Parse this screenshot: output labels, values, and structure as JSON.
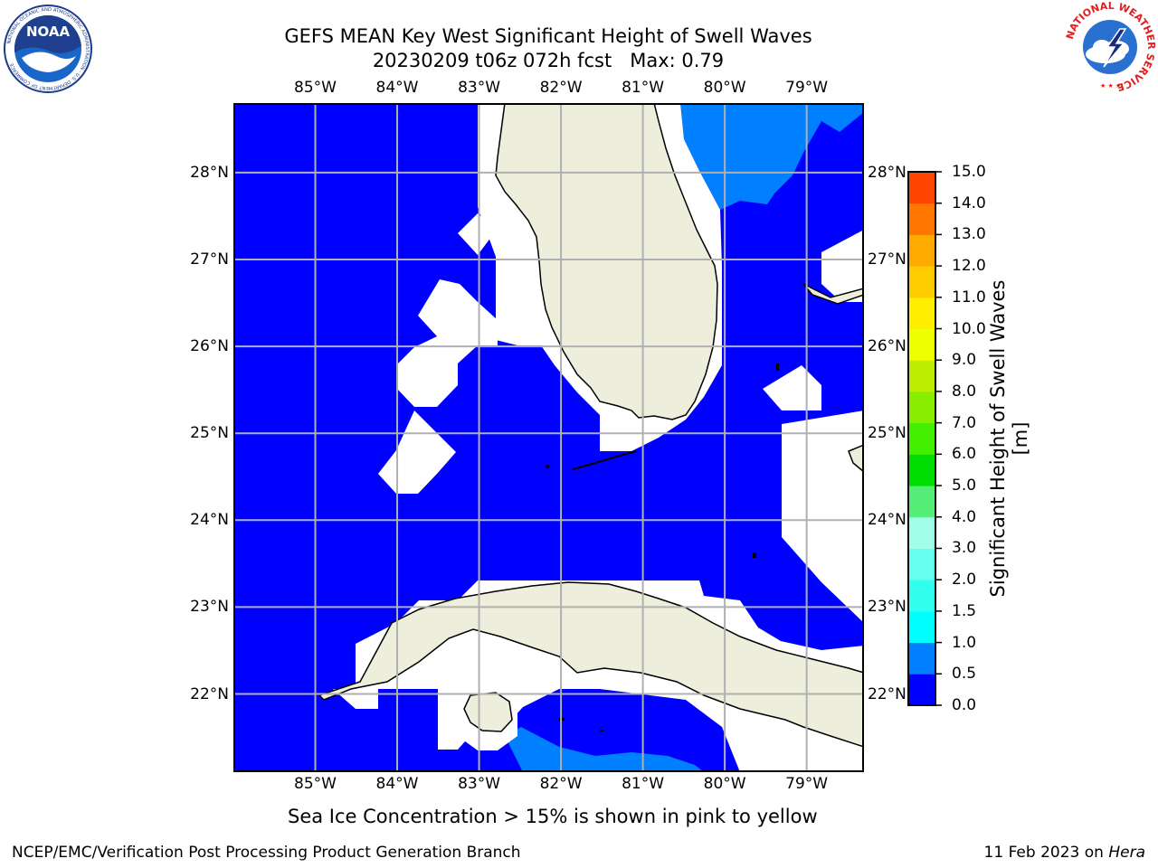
{
  "header": {
    "title_line1": "GEFS MEAN Key West Significant Height of Swell Waves",
    "title_line2": "20230209 t06z 072h fcst   Max: 0.79"
  },
  "logos": {
    "left": "noaa-logo",
    "left_text": "NOAA",
    "left_ring_text": "NATIONAL OCEANIC AND ATMOSPHERIC ADMINISTRATION · U.S. DEPARTMENT OF COMMERCE",
    "right": "nws-logo",
    "right_ring_text": "NATIONAL WEATHER SERVICE"
  },
  "map": {
    "lon_ticks": [
      "85°W",
      "84°W",
      "83°W",
      "82°W",
      "81°W",
      "80°W",
      "79°W"
    ],
    "lat_ticks": [
      "28°N",
      "27°N",
      "26°N",
      "25°N",
      "24°N",
      "23°N",
      "22°N"
    ],
    "lon_range": [
      -86.0,
      -78.3
    ],
    "lat_range": [
      21.1,
      28.8
    ],
    "grid": true,
    "colors": {
      "land": "#eeeedd",
      "swell_0_0.5": "#0000ff",
      "swell_0.5_1.0": "#0080ff",
      "no_data": "#ffffff",
      "coastline": "#000000",
      "grid": "#b0b0b0"
    }
  },
  "colorbar": {
    "label": "Significant Height of Swell Waves [m]",
    "tick_labels": [
      "0.0",
      "0.5",
      "1.0",
      "1.5",
      "2.0",
      "3.0",
      "4.0",
      "5.0",
      "6.0",
      "7.0",
      "8.0",
      "9.0",
      "10.0",
      "11.0",
      "12.0",
      "13.0",
      "14.0",
      "15.0"
    ],
    "levels": [
      0.0,
      0.5,
      1.0,
      1.5,
      2.0,
      3.0,
      4.0,
      5.0,
      6.0,
      7.0,
      8.0,
      9.0,
      10.0,
      11.0,
      12.0,
      13.0,
      14.0,
      15.0
    ],
    "colors": [
      "#0000ff",
      "#0080ff",
      "#00ffff",
      "#33ffee",
      "#66ffee",
      "#a0ffea",
      "#55ee77",
      "#00dd00",
      "#44ee00",
      "#88ee00",
      "#bbee00",
      "#eeff00",
      "#ffee00",
      "#ffcc00",
      "#ffaa00",
      "#ff7700",
      "#ff4400",
      "#ff0000"
    ]
  },
  "subtitle": "Sea Ice Concentration > 15% is shown in pink to yellow",
  "footer": {
    "left": "NCEP/EMC/Verification Post Processing Product Generation Branch",
    "right_date": "11 Feb 2023 on ",
    "right_host": "Hera"
  }
}
